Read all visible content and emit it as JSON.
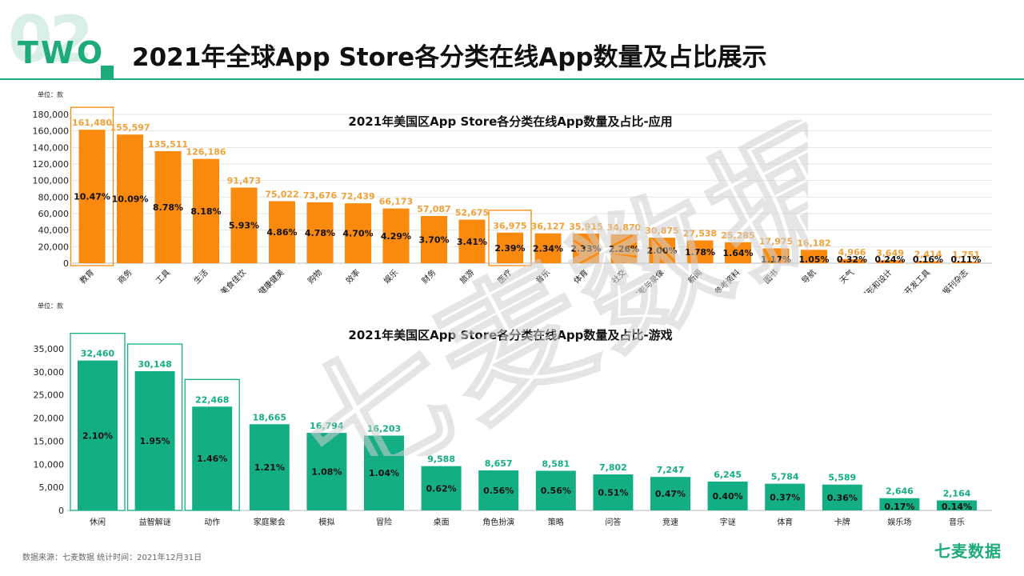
{
  "header": {
    "section_number": "02",
    "section_word": "TWO",
    "title": "2021年全球App Store各分类在线App数量及占比展示",
    "accent_color": "#1daa7c"
  },
  "watermark_text": "七麦数据",
  "footer": {
    "source_note": "数据来源：七麦数据  统计时间：2021年12月31日",
    "brand": "七麦数据"
  },
  "chart_data": [
    {
      "type": "bar",
      "title": "2021年美国区App Store各分类在线App数量及占比-应用",
      "unit_label": "单位：款",
      "bar_color": "#f98a0d",
      "value_label_color": "#f0a13a",
      "highlight_color": "#f98a0d",
      "ylim": [
        0,
        180000
      ],
      "yticks": [
        0,
        20000,
        40000,
        60000,
        80000,
        100000,
        120000,
        140000,
        160000,
        180000
      ],
      "ytick_labels": [
        "0",
        "20,000",
        "40,000",
        "60,000",
        "80,000",
        "100,000",
        "120,000",
        "140,000",
        "160,000",
        "180,000"
      ],
      "grid": true,
      "categories": [
        "教育",
        "商务",
        "工具",
        "生活",
        "美食佳饮",
        "健康健美",
        "购物",
        "效率",
        "娱乐",
        "财务",
        "旅游",
        "医疗",
        "音乐",
        "体育",
        "社交",
        "摄影与录像",
        "新闻",
        "参考资料",
        "图书",
        "导航",
        "天气",
        "图形和设计",
        "软件开发工具",
        "报刊杂志"
      ],
      "values": [
        161480,
        155597,
        135511,
        126186,
        91473,
        75022,
        73676,
        72439,
        66173,
        57087,
        52675,
        36975,
        36127,
        35915,
        34870,
        30875,
        27538,
        25285,
        17975,
        16182,
        4966,
        3649,
        2414,
        1751
      ],
      "value_labels": [
        "161,480",
        "155,597",
        "135,511",
        "126,186",
        "91,473",
        "75,022",
        "73,676",
        "72,439",
        "66,173",
        "57,087",
        "52,675",
        "36,975",
        "36,127",
        "35,915",
        "34,870",
        "30,875",
        "27,538",
        "25,285",
        "17,975",
        "16,182",
        "4,966",
        "3,649",
        "2,414",
        "1,751"
      ],
      "percent_labels": [
        "10.47%",
        "10.09%",
        "8.78%",
        "8.18%",
        "5.93%",
        "4.86%",
        "4.78%",
        "4.70%",
        "4.29%",
        "3.70%",
        "3.41%",
        "2.39%",
        "2.34%",
        "2.33%",
        "2.26%",
        "2.00%",
        "1.78%",
        "1.64%",
        "1.17%",
        "1.05%",
        "0.32%",
        "0.24%",
        "0.16%",
        "0.11%"
      ],
      "highlighted_categories": [
        "教育",
        "医疗"
      ],
      "rotated_x_labels": true
    },
    {
      "type": "bar",
      "title": "2021年美国区App Store各分类在线App数量及占比-游戏",
      "unit_label": "单位：款",
      "bar_color": "#14ae84",
      "value_label_color": "#14ae84",
      "highlight_color": "#14ae84",
      "ylim": [
        0,
        35000
      ],
      "yticks": [
        0,
        5000,
        10000,
        15000,
        20000,
        25000,
        30000,
        35000
      ],
      "ytick_labels": [
        "0",
        "5,000",
        "10,000",
        "15,000",
        "20,000",
        "25,000",
        "30,000",
        "35,000"
      ],
      "grid": false,
      "categories": [
        "休闲",
        "益智解谜",
        "动作",
        "家庭聚会",
        "模拟",
        "冒险",
        "桌面",
        "角色扮演",
        "策略",
        "问答",
        "竞速",
        "字谜",
        "体育",
        "卡牌",
        "娱乐场",
        "音乐"
      ],
      "values": [
        32460,
        30148,
        22468,
        18665,
        16794,
        16203,
        9588,
        8657,
        8581,
        7802,
        7247,
        6245,
        5784,
        5589,
        2646,
        2164
      ],
      "value_labels": [
        "32,460",
        "30,148",
        "22,468",
        "18,665",
        "16,794",
        "16,203",
        "9,588",
        "8,657",
        "8,581",
        "7,802",
        "7,247",
        "6,245",
        "5,784",
        "5,589",
        "2,646",
        "2,164"
      ],
      "percent_labels": [
        "2.10%",
        "1.95%",
        "1.46%",
        "1.21%",
        "1.08%",
        "1.04%",
        "0.62%",
        "0.56%",
        "0.56%",
        "0.51%",
        "0.47%",
        "0.40%",
        "0.37%",
        "0.36%",
        "0.17%",
        "0.14%"
      ],
      "highlighted_categories": [
        "休闲",
        "益智解谜",
        "动作"
      ],
      "rotated_x_labels": false
    }
  ]
}
